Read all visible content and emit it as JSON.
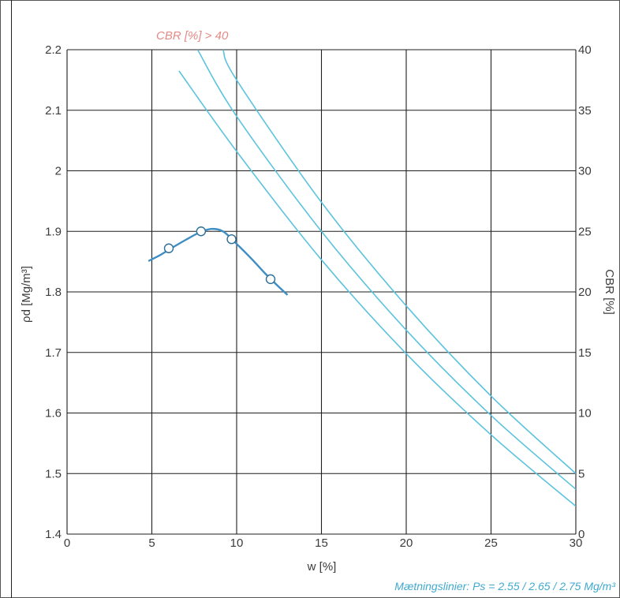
{
  "chart_data": {
    "type": "line",
    "xlabel": "w [%]",
    "ylabel": "ρd [Mg/m³]",
    "y2label": "CBR [%]",
    "xlim": [
      0,
      30
    ],
    "ylim": [
      1.4,
      2.2
    ],
    "y2lim": [
      0,
      40
    ],
    "x_ticks": [
      "0",
      "5",
      "10",
      "15",
      "20",
      "25",
      "30"
    ],
    "y_ticks": [
      "1.4",
      "1.5",
      "1.6",
      "1.7",
      "1.8",
      "1.9",
      "2",
      "2.1",
      "2.2"
    ],
    "y2_ticks": [
      "0",
      "5",
      "10",
      "15",
      "20",
      "25",
      "30",
      "35",
      "40"
    ],
    "grid": true,
    "annotations": {
      "cbr_note": "CBR [%] > 40",
      "saturation_note": "Mætningslinier: Ps = 2.55 / 2.65 / 2.75 Mg/m³"
    },
    "colors": {
      "saturation_lines": "#5cc3de",
      "compaction_curve": "#3f8ec3",
      "cbr_note": "#e48a86"
    },
    "compaction_points": [
      {
        "x": 6.0,
        "y": 1.872
      },
      {
        "x": 7.9,
        "y": 1.9
      },
      {
        "x": 9.7,
        "y": 1.887
      },
      {
        "x": 12.0,
        "y": 1.821
      }
    ],
    "compaction_curve": [
      [
        4.8,
        1.851
      ],
      [
        5.5,
        1.861
      ],
      [
        6.2,
        1.873
      ],
      [
        7.0,
        1.886
      ],
      [
        7.8,
        1.898
      ],
      [
        8.5,
        1.904
      ],
      [
        9.2,
        1.9
      ],
      [
        9.9,
        1.882
      ],
      [
        10.8,
        1.857
      ],
      [
        11.7,
        1.83
      ],
      [
        12.5,
        1.808
      ],
      [
        13.0,
        1.795
      ]
    ],
    "saturation_lines": [
      {
        "ps": 2.55,
        "x": [
          6.6,
          10,
          15,
          20,
          25,
          30
        ],
        "y": [
          2.165,
          2.032,
          1.853,
          1.698,
          1.564,
          1.446
        ]
      },
      {
        "ps": 2.65,
        "x": [
          7.7,
          10,
          15,
          20,
          25,
          30
        ],
        "y": [
          2.2,
          2.09,
          1.9,
          1.737,
          1.596,
          1.474
        ]
      },
      {
        "ps": 2.75,
        "x": [
          9.2,
          10,
          15,
          20,
          25,
          30
        ],
        "y": [
          2.2,
          2.15,
          1.948,
          1.777,
          1.628,
          1.5
        ]
      }
    ]
  }
}
